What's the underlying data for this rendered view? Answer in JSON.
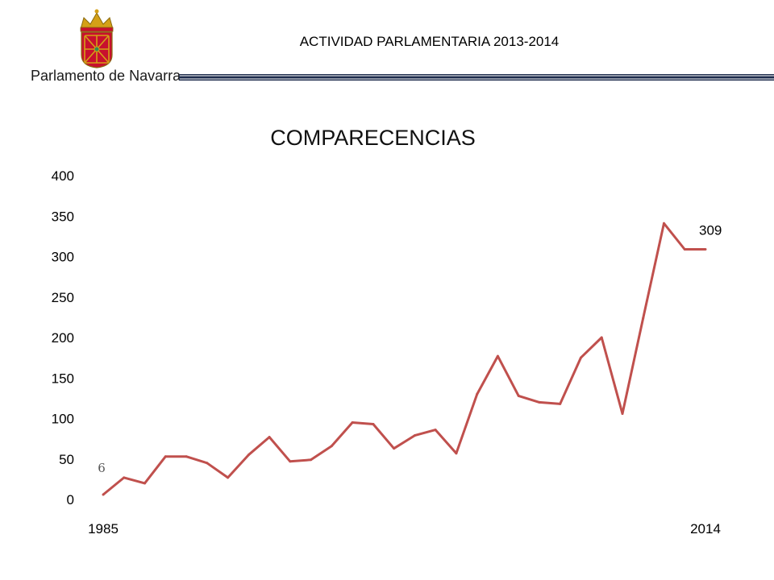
{
  "header": {
    "title": "ACTIVIDAD PARLAMENTARIA 2013-2014",
    "logo_text": "Parlamento de Navarra"
  },
  "colors": {
    "line": "#c0504d",
    "shield_red": "#c8102e",
    "gold": "#d4a017",
    "rule": "#1f2d4d"
  },
  "chart_data": {
    "type": "line",
    "title": "COMPARECENCIAS",
    "xlabel": "",
    "ylabel": "",
    "x_tick_labels": [
      "1985",
      "2014"
    ],
    "y_ticks": [
      "0",
      "50",
      "100",
      "150",
      "200",
      "250",
      "300",
      "350",
      "400"
    ],
    "ylim": [
      0,
      400
    ],
    "grid": false,
    "series": [
      {
        "x": [
          1985,
          1986,
          1987,
          1988,
          1989,
          1990,
          1991,
          1992,
          1993,
          1994,
          1995,
          1996,
          1997,
          1998,
          1999,
          2000,
          2001,
          2002,
          2003,
          2004,
          2005,
          2006,
          2007,
          2008,
          2009,
          2010,
          2011,
          2012,
          2013,
          2014
        ],
        "values": [
          6,
          27,
          20,
          53,
          53,
          45,
          27,
          55,
          77,
          47,
          49,
          66,
          95,
          93,
          63,
          79,
          86,
          57,
          130,
          177,
          128,
          120,
          118,
          175,
          200,
          106,
          224,
          341,
          309,
          309
        ],
        "data_labels": {
          "first": "6",
          "last": "309"
        }
      }
    ]
  }
}
